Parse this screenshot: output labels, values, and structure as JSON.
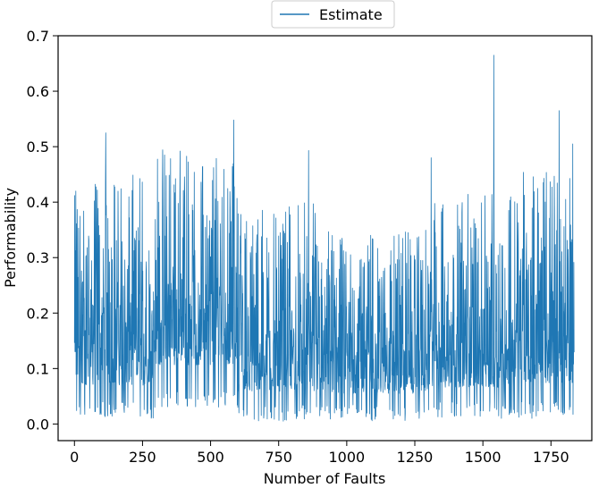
{
  "chart_data": {
    "type": "line",
    "xlabel": "Number of Faults",
    "ylabel": "Performability",
    "xlim": [
      -60,
      1900
    ],
    "ylim": [
      -0.03,
      0.7
    ],
    "x_ticks": [
      0,
      250,
      500,
      750,
      1000,
      1250,
      1500,
      1750
    ],
    "y_ticks": [
      0.0,
      0.1,
      0.2,
      0.3,
      0.4,
      0.5,
      0.6,
      0.7
    ],
    "x_tick_labels": [
      "0",
      "250",
      "500",
      "750",
      "1000",
      "1250",
      "1500",
      "1750"
    ],
    "y_tick_labels": [
      "0.0",
      "0.1",
      "0.2",
      "0.3",
      "0.4",
      "0.5",
      "0.6",
      "0.7"
    ],
    "legend_position": "top-center",
    "grid": false,
    "series": [
      {
        "name": "Estimate",
        "color": "#1f77b4",
        "x_range": [
          0,
          1835
        ],
        "y_range": [
          0.0,
          0.67
        ],
        "peaks": [
          {
            "x": 5,
            "y": 0.42
          },
          {
            "x": 115,
            "y": 0.525
          },
          {
            "x": 585,
            "y": 0.548
          },
          {
            "x": 860,
            "y": 0.493
          },
          {
            "x": 1310,
            "y": 0.48
          },
          {
            "x": 1540,
            "y": 0.665
          },
          {
            "x": 1780,
            "y": 0.565
          },
          {
            "x": 1830,
            "y": 0.505
          }
        ],
        "segments": [
          {
            "x": [
              0,
              300
            ],
            "low": 0.01,
            "high": 0.46,
            "mean": 0.16
          },
          {
            "x": [
              300,
              600
            ],
            "low": 0.03,
            "high": 0.5,
            "mean": 0.22
          },
          {
            "x": [
              600,
              900
            ],
            "low": 0.005,
            "high": 0.4,
            "mean": 0.14
          },
          {
            "x": [
              900,
              1300
            ],
            "low": 0.005,
            "high": 0.35,
            "mean": 0.13
          },
          {
            "x": [
              1300,
              1600
            ],
            "low": 0.01,
            "high": 0.42,
            "mean": 0.15
          },
          {
            "x": [
              1600,
              1835
            ],
            "low": 0.01,
            "high": 0.46,
            "mean": 0.17
          }
        ]
      }
    ]
  }
}
